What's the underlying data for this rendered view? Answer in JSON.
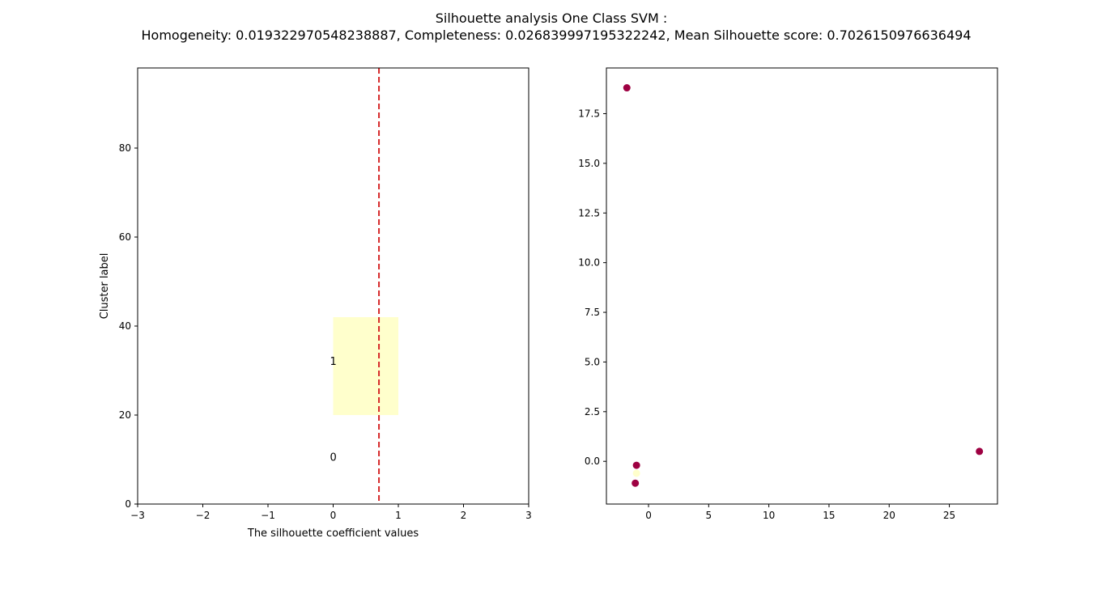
{
  "figure": {
    "title_line1": "Silhouette analysis One Class SVM :",
    "title_line2": "Homogeneity: 0.019322970548238887, Completeness: 0.026839997195322242, Mean Silhouette score: 0.7026150976636494"
  },
  "colors": {
    "cluster_0": "#9e0142",
    "cluster_1": "#ffffcc",
    "mean_line": "#d62728",
    "axes": "#000000"
  },
  "chart_data": [
    {
      "type": "bar",
      "title": "",
      "xlabel": "The silhouette coefficient values",
      "ylabel": "Cluster label",
      "xlim": [
        -3,
        3
      ],
      "ylim": [
        0,
        98
      ],
      "xticks": [
        -3,
        -2,
        -1,
        0,
        1,
        2,
        3
      ],
      "xtick_labels": [
        "−3",
        "−2",
        "−1",
        "0",
        "1",
        "2",
        "3"
      ],
      "yticks": [
        0,
        20,
        40,
        60,
        80
      ],
      "ytick_labels": [
        "0",
        "20",
        "40",
        "60",
        "80"
      ],
      "clusters": [
        {
          "label": "0",
          "label_x": -0.05,
          "label_y": 10.5,
          "x_start": 0,
          "x_end": 0,
          "y_start": 10,
          "y_end": 10
        },
        {
          "label": "1",
          "label_x": -0.05,
          "label_y": 32,
          "x_start": 0,
          "x_end": 1.0,
          "y_start": 20,
          "y_end": 42
        }
      ],
      "mean_silhouette": 0.7026150976636494,
      "mean_line_style": "dashed",
      "grid": false
    },
    {
      "type": "scatter",
      "title": "",
      "xlabel": "",
      "ylabel": "",
      "xlim": [
        -3.5,
        29
      ],
      "ylim": [
        -2.15,
        19.8
      ],
      "xticks": [
        0,
        5,
        10,
        15,
        20,
        25
      ],
      "xtick_labels": [
        "0",
        "5",
        "10",
        "15",
        "20",
        "25"
      ],
      "yticks": [
        0,
        2.5,
        5,
        7.5,
        10,
        12.5,
        15,
        17.5
      ],
      "ytick_labels": [
        "0.0",
        "2.5",
        "5.0",
        "7.5",
        "10.0",
        "12.5",
        "15.0",
        "17.5"
      ],
      "points": [
        {
          "x": -1.8,
          "y": 18.8,
          "cluster": 0
        },
        {
          "x": -1.0,
          "y": -0.2,
          "cluster": 0
        },
        {
          "x": -1.1,
          "y": -1.1,
          "cluster": 0
        },
        {
          "x": -1.0,
          "y": -0.6,
          "cluster": 1
        },
        {
          "x": 27.5,
          "y": 0.5,
          "cluster": 0
        }
      ],
      "grid": false
    }
  ]
}
